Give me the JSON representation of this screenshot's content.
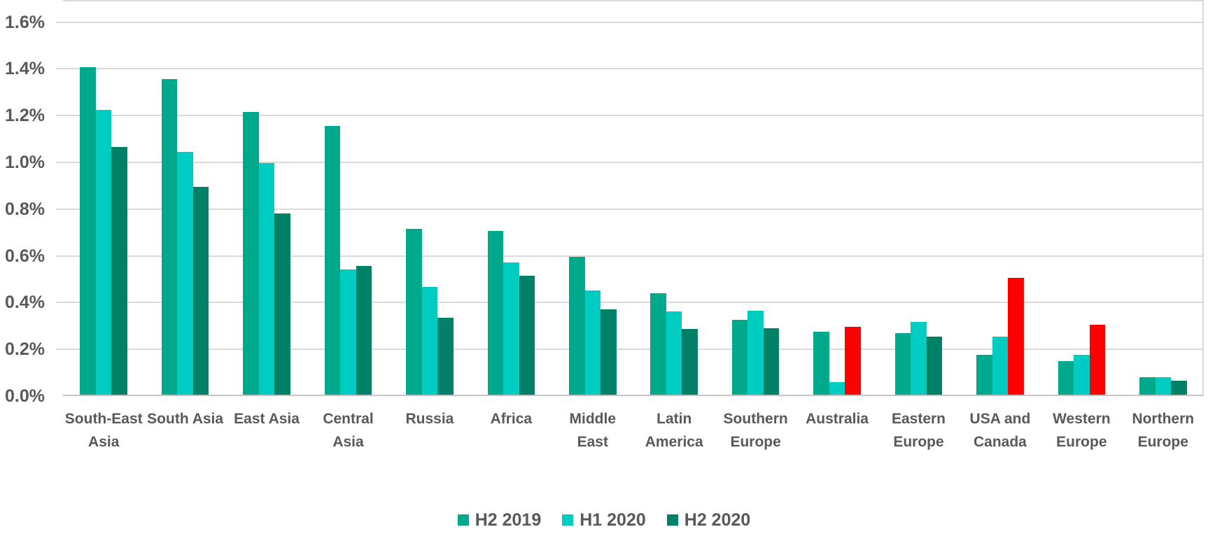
{
  "chart_data": {
    "type": "bar",
    "title": "",
    "xlabel": "",
    "ylabel": "",
    "categories": [
      "South-East Asia",
      "South Asia",
      "East Asia",
      "Central Asia",
      "Russia",
      "Africa",
      "Middle East",
      "Latin America",
      "Southern Europe",
      "Australia",
      "Eastern Europe",
      "USA and Canada",
      "Western Europe",
      "Northern Europe"
    ],
    "category_label_lines": [
      [
        "South-East",
        "Asia"
      ],
      [
        "South Asia"
      ],
      [
        "East Asia"
      ],
      [
        "Central",
        "Asia"
      ],
      [
        "Russia"
      ],
      [
        "Africa"
      ],
      [
        "Middle",
        "East"
      ],
      [
        "Latin",
        "America"
      ],
      [
        "Southern",
        "Europe"
      ],
      [
        "Australia"
      ],
      [
        "Eastern",
        "Europe"
      ],
      [
        "USA and",
        "Canada"
      ],
      [
        "Western",
        "Europe"
      ],
      [
        "Northern",
        "Europe"
      ]
    ],
    "series": [
      {
        "name": "H2 2019",
        "color": "#00A88C",
        "values": [
          1.4,
          1.35,
          1.21,
          1.15,
          0.71,
          0.7,
          0.59,
          0.435,
          0.32,
          0.27,
          0.265,
          0.17,
          0.145,
          0.075
        ]
      },
      {
        "name": "H1 2020",
        "color": "#00CCC2",
        "values": [
          1.22,
          1.04,
          0.99,
          0.535,
          0.46,
          0.565,
          0.445,
          0.355,
          0.36,
          0.055,
          0.31,
          0.25,
          0.17,
          0.075
        ]
      },
      {
        "name": "H2 2020",
        "color": "#008066",
        "values": [
          1.06,
          0.89,
          0.775,
          0.55,
          0.33,
          0.51,
          0.365,
          0.28,
          0.285,
          0.29,
          0.25,
          0.5,
          0.3,
          0.06
        ]
      }
    ],
    "highlight_color": "#FF0000",
    "highlighted_bars": [
      {
        "category": "Australia",
        "series": "H2 2020"
      },
      {
        "category": "USA and Canada",
        "series": "H2 2020"
      },
      {
        "category": "Western Europe",
        "series": "H2 2020"
      }
    ],
    "y_axis": {
      "tick_labels": [
        "0.0%",
        "0.2%",
        "0.4%",
        "0.6%",
        "0.8%",
        "1.0%",
        "1.2%",
        "1.4%",
        "1.6%"
      ],
      "tick_values": [
        0.0,
        0.2,
        0.4,
        0.6,
        0.8,
        1.0,
        1.2,
        1.4,
        1.6
      ],
      "min": 0,
      "max": 1.69,
      "unit": "%",
      "grid": true
    },
    "legend_position": "bottom",
    "colors": {
      "grid": "#D9D9D9",
      "axis_line": "#C6C6C6",
      "label_text": "#595959",
      "background": "#FFFFFF"
    }
  }
}
